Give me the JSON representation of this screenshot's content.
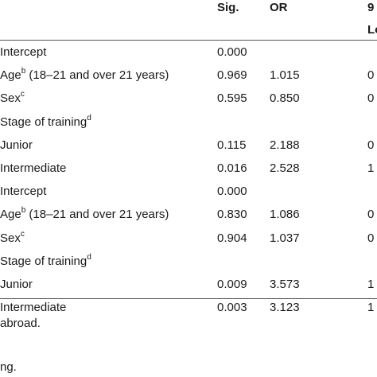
{
  "header": {
    "col_sig": "Sig.",
    "col_or": "OR",
    "col_ci_top": "9",
    "col_ci_sub": "Lo"
  },
  "rows": [
    {
      "label": "Intercept",
      "sup": "",
      "suffix": "",
      "sig": "0.000",
      "or": "",
      "lo": ""
    },
    {
      "label": "Age",
      "sup": "b",
      "suffix": " (18–21 and over 21 years)",
      "sig": "0.969",
      "or": "1.015",
      "lo": "0"
    },
    {
      "label": "Sex",
      "sup": "c",
      "suffix": "",
      "sig": "0.595",
      "or": "0.850",
      "lo": "0"
    },
    {
      "label": "Stage of training",
      "sup": "d",
      "suffix": "",
      "sig": "",
      "or": "",
      "lo": ""
    },
    {
      "label": "Junior",
      "sup": "",
      "suffix": "",
      "sig": "0.115",
      "or": "2.188",
      "lo": "0"
    },
    {
      "label": "Intermediate",
      "sup": "",
      "suffix": "",
      "sig": "0.016",
      "or": "2.528",
      "lo": "1"
    },
    {
      "label": "Intercept",
      "sup": "",
      "suffix": "",
      "sig": "0.000",
      "or": "",
      "lo": ""
    },
    {
      "label": "Age",
      "sup": "b",
      "suffix": " (18–21 and over 21 years)",
      "sig": "0.830",
      "or": "1.086",
      "lo": "0"
    },
    {
      "label": "Sex",
      "sup": "c",
      "suffix": "",
      "sig": "0.904",
      "or": "1.037",
      "lo": "0"
    },
    {
      "label": "Stage of training",
      "sup": "d",
      "suffix": "",
      "sig": "",
      "or": "",
      "lo": ""
    },
    {
      "label": "Junior",
      "sup": "",
      "suffix": "",
      "sig": "0.009",
      "or": "3.573",
      "lo": "1"
    },
    {
      "label": "Intermediate",
      "sup": "",
      "suffix": "",
      "sig": "0.003",
      "or": "3.123",
      "lo": "1"
    }
  ],
  "footnotes": {
    "line1": "abroad.",
    "line2": "ng."
  }
}
